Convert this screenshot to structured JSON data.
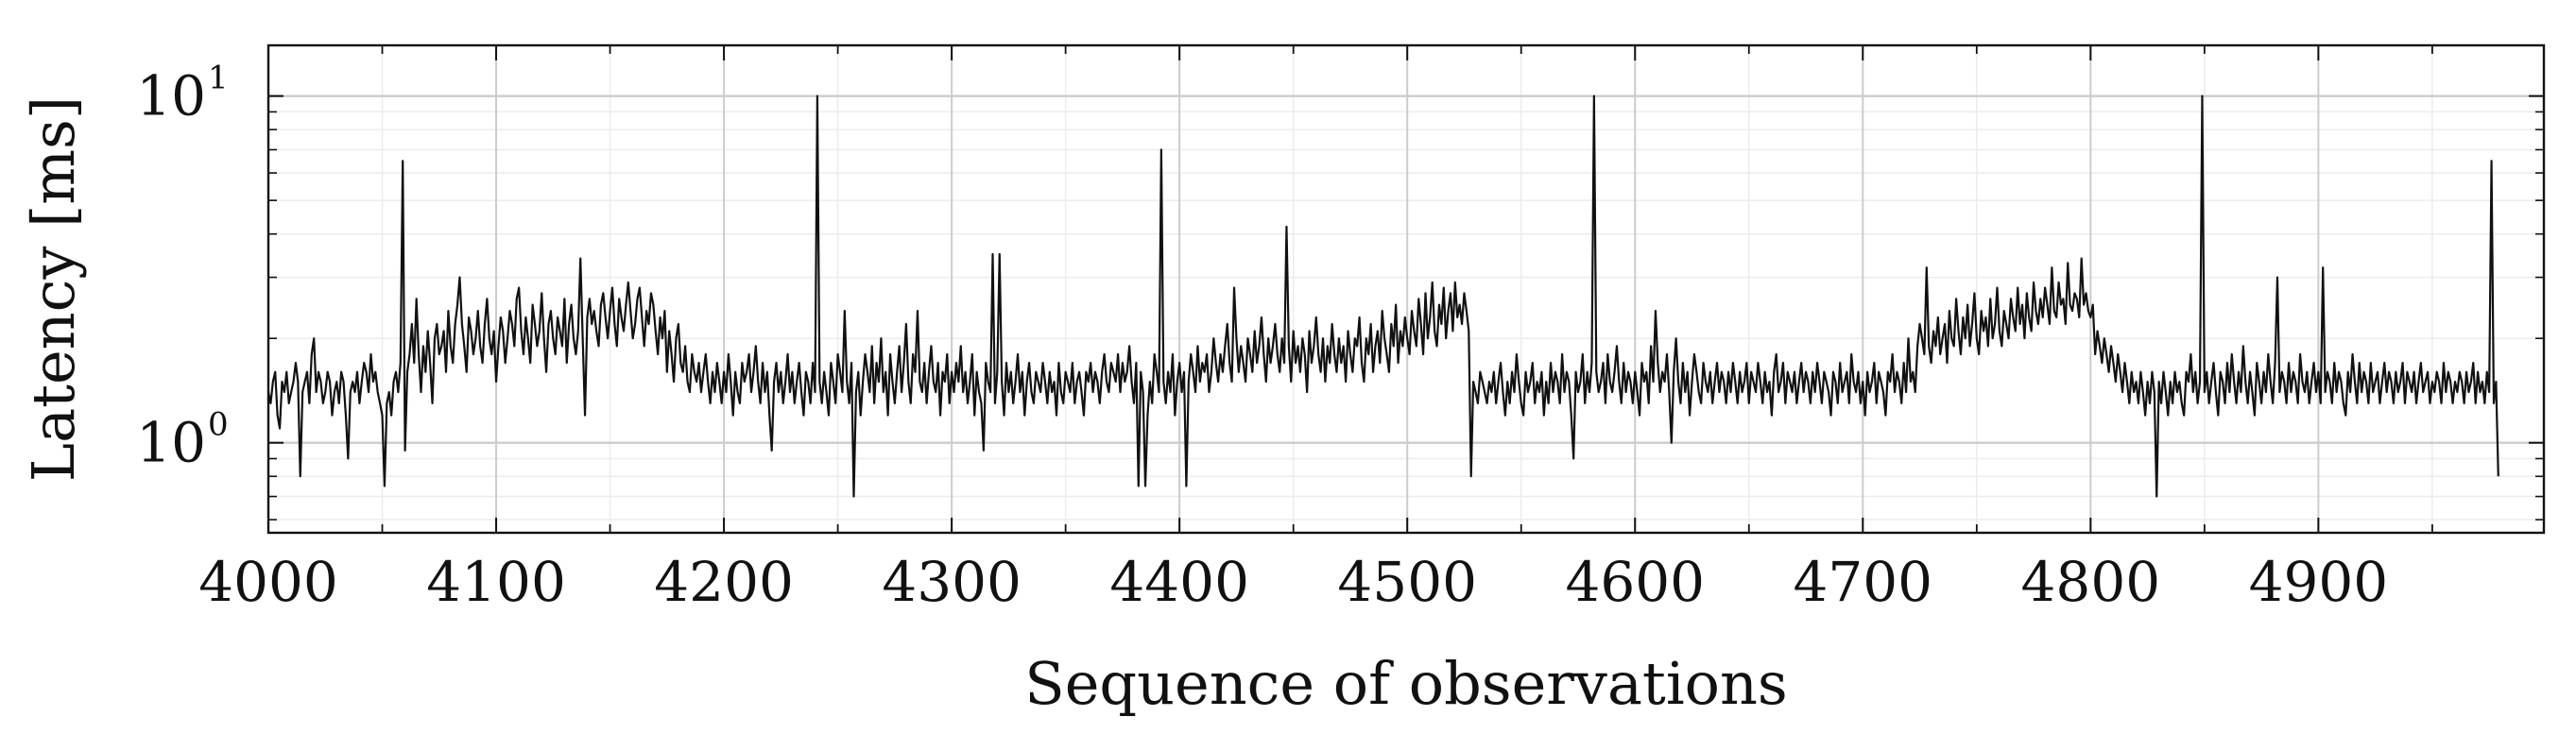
{
  "chart_data": {
    "type": "line",
    "title": "",
    "xlabel": "Sequence of observations",
    "ylabel": "Latency [ms]",
    "xlim": [
      4000,
      4999
    ],
    "ylim": [
      0.55,
      14
    ],
    "yscale": "log",
    "grid": true,
    "legend": "none",
    "xticks": [
      4000,
      4100,
      4200,
      4300,
      4400,
      4500,
      4600,
      4700,
      4800,
      4900
    ],
    "xtick_labels": [
      "4000",
      "4100",
      "4200",
      "4300",
      "4400",
      "4500",
      "4600",
      "4700",
      "4800",
      "4900"
    ],
    "yticks": [
      1,
      10
    ],
    "ytick_labels": [
      {
        "base": "10",
        "exp": "0"
      },
      {
        "base": "10",
        "exp": "1"
      }
    ],
    "line_color": "#111111",
    "grid_color": "#cccccc",
    "series": [
      {
        "x_start": 4000,
        "x_step": 1,
        "values": [
          1.4,
          1.3,
          1.5,
          1.6,
          1.2,
          1.1,
          1.5,
          1.4,
          1.6,
          1.3,
          1.4,
          1.5,
          1.7,
          1.5,
          0.8,
          1.4,
          1.5,
          1.6,
          1.3,
          1.8,
          2,
          1.4,
          1.6,
          1.5,
          1.3,
          1.4,
          1.6,
          1.5,
          1.2,
          1.4,
          1.5,
          1.3,
          1.6,
          1.5,
          1.2,
          0.9,
          1.4,
          1.5,
          1.4,
          1.6,
          1.3,
          1.5,
          1.7,
          1.6,
          1.4,
          1.8,
          1.5,
          1.6,
          1.4,
          1.3,
          1.2,
          0.75,
          1.3,
          1.4,
          1.2,
          1.5,
          1.6,
          1.4,
          1.7,
          6.5,
          0.95,
          1.6,
          1.8,
          2.2,
          1.7,
          2.6,
          1.8,
          1.4,
          1.9,
          1.6,
          2.1,
          1.7,
          1.3,
          2,
          2.2,
          1.8,
          1.9,
          2.1,
          1.6,
          2.4,
          1.9,
          1.7,
          2.2,
          2.5,
          3,
          2.2,
          1.9,
          1.6,
          2.3,
          2.1,
          1.8,
          2,
          2.4,
          1.9,
          1.7,
          2.2,
          2.6,
          2,
          1.8,
          2.1,
          1.5,
          1.9,
          2.3,
          2.1,
          1.7,
          2,
          2.4,
          2.2,
          1.9,
          2.6,
          2.8,
          2.1,
          1.8,
          2.3,
          2,
          1.7,
          2.5,
          2.2,
          1.9,
          2.1,
          2.7,
          2,
          1.6,
          2.2,
          2.4,
          2,
          1.8,
          2.3,
          2.1,
          1.9,
          2.6,
          1.7,
          2.2,
          2.5,
          2,
          1.8,
          2.1,
          3.4,
          2,
          1.2,
          2.3,
          2.6,
          2.2,
          2.4,
          2.1,
          1.9,
          2.5,
          2.7,
          2.3,
          2,
          2.4,
          2.8,
          2.2,
          1.9,
          2.6,
          2.3,
          2.1,
          2.5,
          2.9,
          2.4,
          2,
          2.2,
          2.6,
          2.8,
          2.3,
          1.9,
          2.4,
          2.2,
          2.7,
          2.5,
          2.1,
          1.8,
          2.3,
          2,
          2.4,
          1.6,
          2.1,
          1.8,
          1.5,
          2,
          2.2,
          1.7,
          1.6,
          1.9,
          1.5,
          1.4,
          1.8,
          1.6,
          1.5,
          1.7,
          1.4,
          1.6,
          1.8,
          1.5,
          1.3,
          1.6,
          1.4,
          1.7,
          1.5,
          1.3,
          1.6,
          1.4,
          1.8,
          1.5,
          1.2,
          1.6,
          1.4,
          1.3,
          1.7,
          1.5,
          1.6,
          1.8,
          1.4,
          1.6,
          1.9,
          1.5,
          1.3,
          1.7,
          1.4,
          1.6,
          1.2,
          0.95,
          1.5,
          1.7,
          1.4,
          1.6,
          1.3,
          1.5,
          1.8,
          1.4,
          1.6,
          1.3,
          1.5,
          1.7,
          1.4,
          1.2,
          1.6,
          1.5,
          1.3,
          1.7,
          1.4,
          10,
          1.5,
          1.3,
          1.6,
          1.4,
          1.2,
          1.7,
          1.5,
          1.3,
          1.8,
          1.6,
          1.4,
          2.4,
          1.5,
          1.3,
          1.7,
          0.7,
          1.4,
          1.6,
          1.2,
          1.5,
          1.8,
          1.6,
          1.4,
          1.9,
          1.3,
          1.7,
          1.5,
          2,
          1.4,
          1.6,
          1.2,
          1.8,
          1.5,
          1.3,
          1.6,
          1.9,
          1.4,
          1.7,
          2.2,
          1.5,
          1.3,
          1.8,
          1.6,
          2.4,
          1.5,
          1.4,
          1.7,
          1.3,
          1.6,
          1.9,
          1.5,
          1.4,
          1.7,
          1.2,
          1.6,
          1.5,
          1.8,
          1.3,
          1.6,
          1.4,
          1.7,
          1.5,
          1.9,
          1.4,
          1.6,
          1.3,
          1.5,
          1.8,
          1.2,
          1.6,
          1.4,
          1.3,
          0.95,
          1.7,
          1.5,
          1.4,
          3.5,
          1.3,
          1.6,
          3.5,
          1.5,
          1.2,
          1.7,
          1.4,
          1.6,
          1.3,
          1.5,
          1.8,
          1.4,
          1.6,
          1.2,
          1.5,
          1.7,
          1.4,
          1.3,
          1.6,
          1.5,
          1.4,
          1.7,
          1.5,
          1.3,
          1.6,
          1.4,
          1.5,
          1.2,
          1.7,
          1.4,
          1.3,
          1.6,
          1.5,
          1.4,
          1.7,
          1.3,
          1.5,
          1.6,
          1.4,
          1.2,
          1.6,
          1.5,
          1.7,
          1.4,
          1.6,
          1.5,
          1.3,
          1.6,
          1.8,
          1.5,
          1.4,
          1.7,
          1.6,
          1.5,
          1.8,
          1.4,
          1.7,
          1.5,
          1.6,
          1.9,
          1.5,
          1.3,
          1.7,
          0.75,
          1.6,
          1.4,
          0.75,
          1.2,
          1.5,
          1.3,
          1.8,
          1.6,
          1.4,
          7,
          1.5,
          1.3,
          1.6,
          1.4,
          1.8,
          1.2,
          1.5,
          1.7,
          1.4,
          1.6,
          0.75,
          1.5,
          1.8,
          1.6,
          1.4,
          1.9,
          1.5,
          1.7,
          1.6,
          1.8,
          1.4,
          1.6,
          2,
          1.7,
          1.5,
          1.8,
          1.6,
          1.9,
          2.2,
          1.7,
          1.5,
          2.8,
          2,
          1.6,
          1.9,
          1.7,
          1.5,
          2,
          1.8,
          1.6,
          2.1,
          1.7,
          1.9,
          2.3,
          1.8,
          1.5,
          2,
          1.7,
          1.9,
          2.2,
          1.8,
          1.6,
          2,
          1.7,
          4.2,
          1.9,
          1.5,
          2.1,
          1.7,
          1.9,
          1.6,
          2,
          1.8,
          1.4,
          2.1,
          1.7,
          1.9,
          2.3,
          1.8,
          1.6,
          2,
          1.5,
          1.9,
          1.7,
          2.2,
          1.8,
          1.6,
          2,
          1.7,
          1.9,
          1.5,
          2.1,
          1.8,
          1.6,
          2,
          1.9,
          2.3,
          1.7,
          1.5,
          2,
          1.8,
          2.2,
          1.6,
          1.9,
          2.1,
          1.7,
          2.4,
          2,
          1.8,
          1.6,
          2.2,
          1.9,
          2.5,
          1.7,
          2.1,
          1.9,
          2.3,
          2,
          1.8,
          2.4,
          2.1,
          1.9,
          2.6,
          2.2,
          1.8,
          2.7,
          2,
          2.3,
          2.9,
          2.1,
          1.9,
          2.5,
          2.2,
          2.8,
          2,
          2.4,
          2.7,
          2.1,
          2.9,
          2.3,
          2.5,
          2.2,
          2.7,
          2.4,
          2.1,
          0.8,
          1.5,
          1.4,
          1.3,
          1.6,
          1.5,
          1.4,
          1.3,
          1.5,
          1.4,
          1.6,
          1.3,
          1.5,
          1.7,
          1.4,
          1.2,
          1.5,
          1.3,
          1.6,
          1.4,
          1.8,
          1.5,
          1.3,
          1.2,
          1.6,
          1.4,
          1.5,
          1.7,
          1.3,
          1.5,
          1.4,
          1.6,
          1.2,
          1.5,
          1.3,
          1.7,
          1.4,
          1.6,
          1.5,
          1.3,
          1.8,
          1.4,
          1.6,
          1.5,
          1.2,
          0.9,
          1.6,
          1.4,
          1.5,
          1.8,
          1.3,
          1.6,
          1.4,
          1.7,
          10,
          1.6,
          1.4,
          1.5,
          1.7,
          1.3,
          1.8,
          1.5,
          1.4,
          1.6,
          1.9,
          1.5,
          1.3,
          1.7,
          1.4,
          1.6,
          1.5,
          1.3,
          1.6,
          1.4,
          1.2,
          1.7,
          1.5,
          1.6,
          1.3,
          1.9,
          1.5,
          2.4,
          1.7,
          1.4,
          1.6,
          1.5,
          1.8,
          1.4,
          1.0,
          1.6,
          2.0,
          1.5,
          1.3,
          1.7,
          1.4,
          1.6,
          1.2,
          1.5,
          1.8,
          1.6,
          1.4,
          1.3,
          1.7,
          1.5,
          1.4,
          1.6,
          1.3,
          1.5,
          1.7,
          1.4,
          1.6,
          1.5,
          1.3,
          1.6,
          1.4,
          1.7,
          1.5,
          1.3,
          1.6,
          1.4,
          1.5,
          1.7,
          1.3,
          1.6,
          1.5,
          1.4,
          1.7,
          1.5,
          1.3,
          1.6,
          1.4,
          1.5,
          1.2,
          1.6,
          1.8,
          1.4,
          1.5,
          1.7,
          1.3,
          1.6,
          1.5,
          1.4,
          1.6,
          1.3,
          1.5,
          1.7,
          1.4,
          1.6,
          1.5,
          1.3,
          1.6,
          1.4,
          1.7,
          1.5,
          1.3,
          1.6,
          1.5,
          1.4,
          1.2,
          1.6,
          1.5,
          1.3,
          1.7,
          1.4,
          1.5,
          1.6,
          1.3,
          1.8,
          1.5,
          1.4,
          1.6,
          1.3,
          1.5,
          1.2,
          1.6,
          1.4,
          1.5,
          1.7,
          1.3,
          1.6,
          1.5,
          1.4,
          1.2,
          1.6,
          1.5,
          1.8,
          1.4,
          1.6,
          1.5,
          1.3,
          1.7,
          1.4,
          2,
          1.5,
          1.6,
          1.4,
          1.9,
          2.2,
          2,
          1.8,
          3.2,
          1.9,
          1.7,
          2.1,
          1.9,
          2.3,
          1.8,
          2,
          2.2,
          1.7,
          2.4,
          2,
          1.9,
          2.6,
          2.1,
          1.8,
          2.3,
          2,
          2.5,
          1.9,
          2.2,
          2.7,
          2,
          1.8,
          2.4,
          2.1,
          2.3,
          1.9,
          2.6,
          2,
          2.2,
          2.8,
          2.1,
          1.9,
          2.4,
          2.2,
          2,
          2.6,
          2.3,
          2.1,
          2.8,
          2.2,
          2.5,
          2,
          2.7,
          2.3,
          2.1,
          2.9,
          2.4,
          2.2,
          2.6,
          2.3,
          2.8,
          2.5,
          2.2,
          3.2,
          2.4,
          2.3,
          2.9,
          2.5,
          2.6,
          2.2,
          3.3,
          2.5,
          2.4,
          2.7,
          2.6,
          2.3,
          3.4,
          2.5,
          2.7,
          2.4,
          2.3,
          2.5,
          1.8,
          2.1,
          1.9,
          1.7,
          2,
          1.8,
          1.6,
          1.9,
          1.7,
          1.5,
          1.8,
          1.6,
          1.4,
          1.7,
          1.5,
          1.3,
          1.6,
          1.4,
          1.5,
          1.3,
          1.6,
          1.4,
          1.2,
          1.5,
          1.3,
          1.6,
          1.4,
          0.7,
          1.5,
          1.3,
          1.6,
          1.4,
          1.2,
          1.5,
          1.3,
          1.6,
          1.4,
          1.5,
          1.3,
          1.2,
          1.6,
          1.5,
          1.8,
          1.4,
          1.6,
          1.3,
          1.5,
          10,
          1.4,
          1.6,
          1.3,
          1.5,
          1.7,
          1.4,
          1.2,
          1.6,
          1.5,
          1.3,
          1.7,
          1.4,
          1.8,
          1.5,
          1.3,
          1.6,
          1.4,
          1.9,
          1.5,
          1.3,
          1.6,
          1.4,
          1.2,
          1.7,
          1.5,
          1.3,
          1.6,
          1.4,
          1.8,
          1.5,
          1.3,
          1.7,
          3,
          1.4,
          1.6,
          1.5,
          1.3,
          1.7,
          1.4,
          1.6,
          1.5,
          1.3,
          1.8,
          1.5,
          1.4,
          1.6,
          1.3,
          1.5,
          1.7,
          1.4,
          1.6,
          1.3,
          3.2,
          1.4,
          1.6,
          1.5,
          1.3,
          1.7,
          1.4,
          1.6,
          1.5,
          1.3,
          1.2,
          1.6,
          1.4,
          1.8,
          1.5,
          1.3,
          1.7,
          1.4,
          1.6,
          1.5,
          1.3,
          1.7,
          1.4,
          1.5,
          1.6,
          1.3,
          1.5,
          1.7,
          1.4,
          1.6,
          1.5,
          1.3,
          1.6,
          1.4,
          1.5,
          1.7,
          1.3,
          1.6,
          1.5,
          1.4,
          1.6,
          1.3,
          1.5,
          1.7,
          1.4,
          1.5,
          1.6,
          1.3,
          1.5,
          1.4,
          1.6,
          1.5,
          1.3,
          1.7,
          1.4,
          1.6,
          1.5,
          1.3,
          1.5,
          1.4,
          1.6,
          1.5,
          1.3,
          1.6,
          1.4,
          1.5,
          1.7,
          1.3,
          1.6,
          1.4,
          1.5,
          1.3,
          1.6,
          1.4,
          6.5,
          1.3,
          1.5,
          0.8
        ]
      }
    ]
  }
}
